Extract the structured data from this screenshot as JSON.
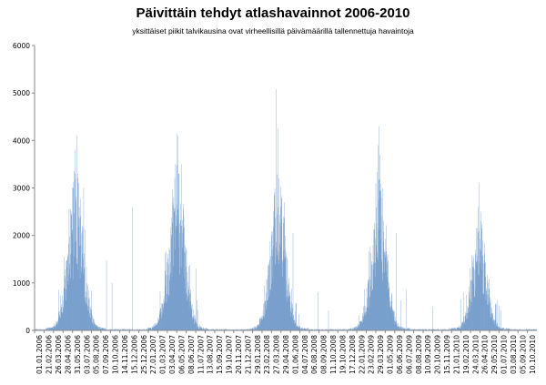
{
  "chart_data": {
    "type": "bar",
    "title": "Päivittäin tehdyt atlashavainnot  2006-2010",
    "subtitle": "yksittäiset piikit talvikausina ovat virheellisillä päivämäärillä tallennettuja havaintoja",
    "xlabel": "",
    "ylabel": "",
    "ylim": [
      0,
      6000
    ],
    "yticks": [
      "0",
      "1000",
      "2000",
      "3000",
      "4000",
      "5000",
      "6000"
    ],
    "grid": false,
    "legend": "none",
    "bar_color": "#4a7ebb",
    "x_start": "2006-01-01",
    "x_end": "2010-12-31",
    "tick_labels": [
      "01.01.2006",
      "21.02.2006",
      "26.03.2006",
      "28.04.2006",
      "31.05.2006",
      "03.07.2006",
      "05.08.2006",
      "07.09.2006",
      "10.10.2006",
      "14.11.2006",
      "15.12.2006",
      "25.12.2006",
      "27.01.2007",
      "01.03.2007",
      "03.04.2007",
      "06.05.2007",
      "08.06.2007",
      "11.07.2007",
      "13.08.2007",
      "15.09.2007",
      "19.10.2007",
      "20.11.2007",
      "21.12.2007",
      "29.01.2008",
      "23.02.2008",
      "27.03.2008",
      "29.04.2008",
      "01.06.2008",
      "04.07.2008",
      "06.08.2008",
      "08.09.2008",
      "11.10.2008",
      "19.10.2008",
      "17.12.2008",
      "22.01.2009",
      "23.02.2009",
      "29.03.2009",
      "01.05.2009",
      "06.06.2009",
      "06.07.2009",
      "08.08.2009",
      "10.09.2009",
      "20.10.2009",
      "15.11.2009",
      "21.01.2010",
      "19.02.2010",
      "24.03.2010",
      "26.04.2010",
      "29.05.2010",
      "01.07.2010",
      "03.08.2010",
      "05.09.2010",
      "10.10.2010"
    ],
    "seasons": [
      {
        "peak_date": "2006-06-01",
        "base_peak": 2500,
        "spread_days": 26,
        "spikes": [
          {
            "date": "2006-05-27",
            "value": 3800
          },
          {
            "date": "2006-06-03",
            "value": 4100
          },
          {
            "date": "2006-06-06",
            "value": 3300
          },
          {
            "date": "2006-05-22",
            "value": 3000
          },
          {
            "date": "2006-06-12",
            "value": 2600
          },
          {
            "date": "2006-06-28",
            "value": 3000
          },
          {
            "date": "2006-04-19",
            "value": 1550
          },
          {
            "date": "2006-03-28",
            "value": 850
          },
          {
            "date": "2006-09-19",
            "value": 1480
          },
          {
            "date": "2006-10-09",
            "value": 1000
          },
          {
            "date": "2006-12-21",
            "value": 2600
          }
        ]
      },
      {
        "peak_date": "2007-06-04",
        "base_peak": 2600,
        "spread_days": 27,
        "spikes": [
          {
            "date": "2007-06-01",
            "value": 4150
          },
          {
            "date": "2007-06-05",
            "value": 4100
          },
          {
            "date": "2007-05-28",
            "value": 3500
          },
          {
            "date": "2007-06-10",
            "value": 3300
          },
          {
            "date": "2007-06-18",
            "value": 3500
          },
          {
            "date": "2007-07-15",
            "value": 1350
          },
          {
            "date": "2007-08-10",
            "value": 1300
          }
        ]
      },
      {
        "peak_date": "2008-06-05",
        "base_peak": 2450,
        "spread_days": 25,
        "spikes": [
          {
            "date": "2008-05-28",
            "value": 5080
          },
          {
            "date": "2008-06-03",
            "value": 4250
          },
          {
            "date": "2008-06-07",
            "value": 3200
          },
          {
            "date": "2008-06-14",
            "value": 2600
          },
          {
            "date": "2008-05-20",
            "value": 2700
          },
          {
            "date": "2008-07-28",
            "value": 2050
          },
          {
            "date": "2008-10-27",
            "value": 800
          },
          {
            "date": "2008-12-04",
            "value": 420
          }
        ]
      },
      {
        "peak_date": "2009-06-07",
        "base_peak": 2500,
        "spread_days": 25,
        "spikes": [
          {
            "date": "2009-06-05",
            "value": 4300
          },
          {
            "date": "2009-06-02",
            "value": 3900
          },
          {
            "date": "2009-06-10",
            "value": 3700
          },
          {
            "date": "2009-05-25",
            "value": 3100
          },
          {
            "date": "2009-06-17",
            "value": 2400
          },
          {
            "date": "2009-08-08",
            "value": 2050
          },
          {
            "date": "2009-09-12",
            "value": 850
          },
          {
            "date": "2009-12-18",
            "value": 500
          }
        ]
      },
      {
        "peak_date": "2010-06-07",
        "base_peak": 1750,
        "spread_days": 24,
        "spikes": [
          {
            "date": "2010-06-05",
            "value": 3100
          },
          {
            "date": "2010-05-31",
            "value": 2600
          },
          {
            "date": "2010-06-10",
            "value": 2500
          },
          {
            "date": "2010-06-14",
            "value": 2200
          },
          {
            "date": "2010-05-25",
            "value": 2150
          },
          {
            "date": "2010-04-20",
            "value": 750
          }
        ]
      }
    ]
  }
}
